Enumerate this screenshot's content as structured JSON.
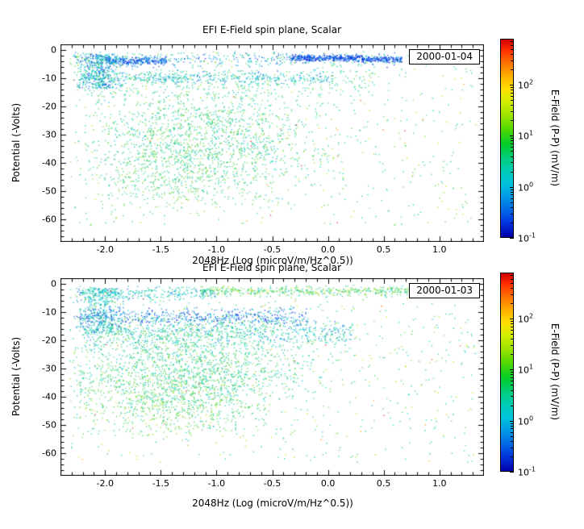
{
  "palettes": {
    "blue": [
      "#0014d2",
      "#0032ff",
      "#1450e6",
      "#0050c8"
    ],
    "blueCyan": [
      "#0073e6",
      "#009be1",
      "#00b4dc",
      "#1e5ae6"
    ],
    "cyan": [
      "#00c8b4",
      "#00d2c3",
      "#0fc3a5",
      "#00bed7"
    ],
    "teal": [
      "#23cd8c",
      "#2fcf7d",
      "#28c99b",
      "#3cd273"
    ],
    "green": [
      "#46cc50",
      "#5ad73e",
      "#50d45a",
      "#76dc30"
    ],
    "lime": [
      "#96e016",
      "#aae400",
      "#c3e800"
    ],
    "warm": [
      "#e6c800",
      "#f09600",
      "#ee5a00",
      "#e02222"
    ]
  },
  "chart_data": [
    {
      "type": "scatter",
      "title": "EFI  E-Field spin plane, Scalar",
      "legend_date": "2000-01-04",
      "xlabel": "2048Hz (Log (microV/m/Hz^0.5))",
      "ylabel": "Potential (-Volts)",
      "xlim": [
        -2.4,
        1.4
      ],
      "ylim": [
        -68,
        2
      ],
      "xticks": [
        "-2.0",
        "-1.5",
        "-1.0",
        "-0.5",
        "0.0",
        "0.5",
        "1.0"
      ],
      "xtick_values": [
        -2.0,
        -1.5,
        -1.0,
        -0.5,
        0.0,
        0.5,
        1.0
      ],
      "yticks": [
        "0",
        "-10",
        "-20",
        "-30",
        "-40",
        "-50",
        "-60"
      ],
      "ytick_values": [
        0,
        -10,
        -20,
        -30,
        -40,
        -50,
        -60
      ],
      "colorbar": {
        "label": "E-Field (P-P) (mV/m)",
        "scale": "log",
        "range_exponents": [
          -1,
          2.9
        ],
        "tick_exponents": [
          2,
          1,
          0,
          -1
        ],
        "colormap": "rainbow"
      },
      "clusters": [
        {
          "n": 420,
          "x": {
            "t": "u",
            "a": -2.28,
            "b": 0.66
          },
          "y": {
            "t": "g",
            "mu": -3.2,
            "sd": 1.4,
            "min": -7.5,
            "max": -0.4
          },
          "c": [
            [
              "blueCyan",
              0.35
            ],
            [
              "cyan",
              0.35
            ],
            [
              "green",
              0.2
            ],
            [
              "blue",
              0.1
            ]
          ]
        },
        {
          "n": 380,
          "x": {
            "t": "u",
            "a": -0.35,
            "b": 0.32
          },
          "y": {
            "t": "g",
            "mu": -2.7,
            "sd": 0.55,
            "min": -4.6,
            "max": -1.0
          },
          "c": [
            [
              "blue",
              0.75
            ],
            [
              "blueCyan",
              0.25
            ]
          ]
        },
        {
          "n": 180,
          "x": {
            "t": "u",
            "a": 0.3,
            "b": 0.66
          },
          "y": {
            "t": "g",
            "mu": -3.1,
            "sd": 0.5,
            "min": -4.8,
            "max": -1.4
          },
          "c": [
            [
              "blue",
              0.7
            ],
            [
              "blueCyan",
              0.3
            ]
          ]
        },
        {
          "n": 260,
          "x": {
            "t": "u",
            "a": -2.0,
            "b": -1.45
          },
          "y": {
            "t": "g",
            "mu": -3.8,
            "sd": 0.8,
            "min": -6.2,
            "max": -1.6
          },
          "c": [
            [
              "blue",
              0.55
            ],
            [
              "blueCyan",
              0.45
            ]
          ]
        },
        {
          "n": 430,
          "x": {
            "t": "g",
            "mu": -2.06,
            "sd": 0.09,
            "min": -2.3,
            "max": -1.8
          },
          "y": {
            "t": "u",
            "a": -13.5,
            "b": -1.2
          },
          "c": [
            [
              "cyan",
              0.4
            ],
            [
              "blueCyan",
              0.3
            ],
            [
              "blue",
              0.15
            ],
            [
              "teal",
              0.15
            ]
          ]
        },
        {
          "n": 430,
          "x": {
            "t": "u",
            "a": -2.26,
            "b": 0.05
          },
          "y": {
            "t": "g",
            "mu": -9.8,
            "sd": 1.1,
            "min": -12.8,
            "max": -7.2
          },
          "c": [
            [
              "cyan",
              0.45
            ],
            [
              "blueCyan",
              0.35
            ],
            [
              "teal",
              0.2
            ]
          ]
        },
        {
          "n": 300,
          "x": {
            "t": "u",
            "a": -2.26,
            "b": 0.42
          },
          "y": {
            "t": "u",
            "a": -16.5,
            "b": -6.8
          },
          "c": [
            [
              "cyan",
              0.4
            ],
            [
              "teal",
              0.33
            ],
            [
              "green",
              0.27
            ]
          ]
        },
        {
          "n": 1500,
          "x": {
            "t": "g",
            "mu": -1.15,
            "sd": 0.55,
            "min": -2.32,
            "max": 0.45
          },
          "y": {
            "t": "g",
            "mu": -31,
            "sd": 9.5,
            "min": -57,
            "max": -13
          },
          "c": [
            [
              "cyan",
              0.28
            ],
            [
              "teal",
              0.4
            ],
            [
              "green",
              0.32
            ]
          ]
        },
        {
          "n": 330,
          "x": {
            "t": "g",
            "mu": -1.35,
            "sd": 0.38,
            "min": -2.25,
            "max": -0.35
          },
          "y": {
            "t": "g",
            "mu": -46,
            "sd": 5.5,
            "min": -59,
            "max": -34
          },
          "c": [
            [
              "teal",
              0.45
            ],
            [
              "green",
              0.55
            ]
          ]
        },
        {
          "n": 560,
          "x": {
            "t": "u",
            "a": -2.32,
            "b": 1.32
          },
          "y": {
            "t": "u",
            "a": -62,
            "b": -0.8
          },
          "c": [
            [
              "green",
              0.32
            ],
            [
              "cyan",
              0.26
            ],
            [
              "teal",
              0.24
            ],
            [
              "lime",
              0.12
            ],
            [
              "warm",
              0.06
            ]
          ]
        }
      ]
    },
    {
      "type": "scatter",
      "title": "EFI  E-Field spin plane, Scalar",
      "legend_date": "2000-01-03",
      "xlabel": "2048Hz (Log (microV/m/Hz^0.5))",
      "ylabel": "Potential (-Volts)",
      "xlim": [
        -2.4,
        1.4
      ],
      "ylim": [
        -68,
        2
      ],
      "xticks": [
        "-2.0",
        "-1.5",
        "-1.0",
        "-0.5",
        "0.0",
        "0.5",
        "1.0"
      ],
      "xtick_values": [
        -2.0,
        -1.5,
        -1.0,
        -0.5,
        0.0,
        0.5,
        1.0
      ],
      "yticks": [
        "0",
        "-10",
        "-20",
        "-30",
        "-40",
        "-50",
        "-60"
      ],
      "ytick_values": [
        0,
        -10,
        -20,
        -30,
        -40,
        -50,
        -60
      ],
      "colorbar": {
        "label": "E-Field (P-P) (mV/m)",
        "scale": "log",
        "range_exponents": [
          -1,
          2.9
        ],
        "tick_exponents": [
          2,
          1,
          0,
          -1
        ],
        "colormap": "rainbow"
      },
      "clusters": [
        {
          "n": 460,
          "x": {
            "t": "u",
            "a": -1.15,
            "b": 0.72
          },
          "y": {
            "t": "g",
            "mu": -2.3,
            "sd": 0.9,
            "min": -4.8,
            "max": -0.4
          },
          "c": [
            [
              "green",
              0.38
            ],
            [
              "teal",
              0.3
            ],
            [
              "lime",
              0.17
            ],
            [
              "cyan",
              0.15
            ]
          ]
        },
        {
          "n": 260,
          "x": {
            "t": "u",
            "a": -2.26,
            "b": -1.0
          },
          "y": {
            "t": "g",
            "mu": -3.2,
            "sd": 1.1,
            "min": -6.5,
            "max": -0.5
          },
          "c": [
            [
              "cyan",
              0.5
            ],
            [
              "teal",
              0.28
            ],
            [
              "blueCyan",
              0.22
            ]
          ]
        },
        {
          "n": 400,
          "x": {
            "t": "g",
            "mu": -2.05,
            "sd": 0.1,
            "min": -2.32,
            "max": -1.72
          },
          "y": {
            "t": "u",
            "a": -17,
            "b": -1.2
          },
          "c": [
            [
              "cyan",
              0.42
            ],
            [
              "blueCyan",
              0.3
            ],
            [
              "teal",
              0.28
            ]
          ]
        },
        {
          "n": 560,
          "x": {
            "t": "u",
            "a": -2.26,
            "b": -0.18
          },
          "y": {
            "t": "g",
            "mu": -11.6,
            "sd": 1.5,
            "min": -15,
            "max": -8
          },
          "c": [
            [
              "blue",
              0.42
            ],
            [
              "blueCyan",
              0.36
            ],
            [
              "cyan",
              0.22
            ]
          ]
        },
        {
          "n": 620,
          "x": {
            "t": "u",
            "a": -2.2,
            "b": 0.22
          },
          "y": {
            "t": "g",
            "mu": -17.2,
            "sd": 2.3,
            "min": -23,
            "max": -12
          },
          "c": [
            [
              "cyan",
              0.44
            ],
            [
              "teal",
              0.3
            ],
            [
              "blueCyan",
              0.26
            ]
          ]
        },
        {
          "n": 1750,
          "x": {
            "t": "g",
            "mu": -1.25,
            "sd": 0.55,
            "min": -2.32,
            "max": 0.35
          },
          "y": {
            "t": "g",
            "mu": -29,
            "sd": 9.5,
            "min": -53,
            "max": -11.5
          },
          "c": [
            [
              "teal",
              0.36
            ],
            [
              "green",
              0.34
            ],
            [
              "cyan",
              0.3
            ]
          ]
        },
        {
          "n": 520,
          "x": {
            "t": "g",
            "mu": -1.45,
            "sd": 0.42,
            "min": -2.32,
            "max": -0.45
          },
          "y": {
            "t": "g",
            "mu": -42,
            "sd": 6,
            "min": -57,
            "max": -29
          },
          "c": [
            [
              "green",
              0.55
            ],
            [
              "teal",
              0.33
            ],
            [
              "lime",
              0.12
            ]
          ]
        },
        {
          "n": 650,
          "x": {
            "t": "u",
            "a": -2.32,
            "b": 1.32
          },
          "y": {
            "t": "u",
            "a": -63,
            "b": -0.8
          },
          "c": [
            [
              "green",
              0.3
            ],
            [
              "cyan",
              0.28
            ],
            [
              "teal",
              0.24
            ],
            [
              "lime",
              0.12
            ],
            [
              "warm",
              0.06
            ]
          ]
        }
      ]
    }
  ]
}
